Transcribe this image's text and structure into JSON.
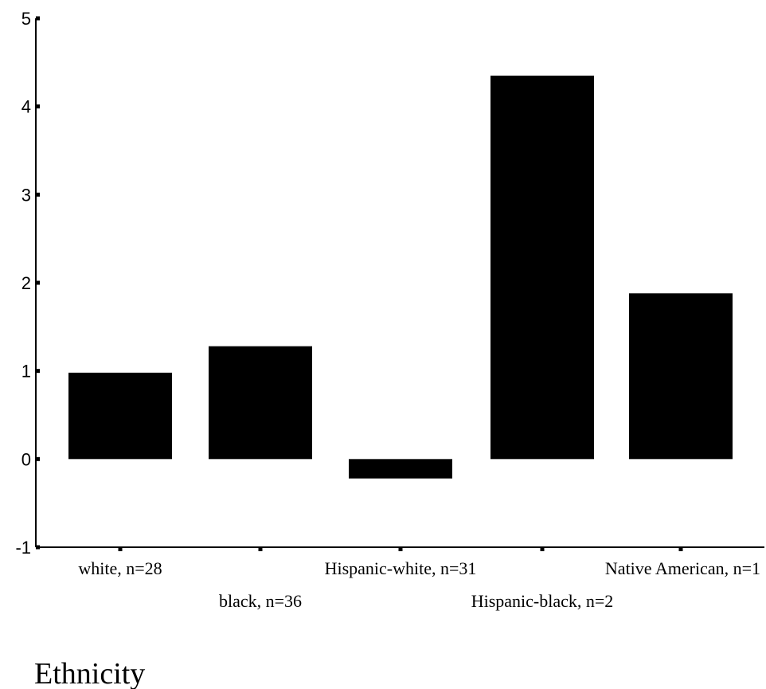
{
  "chart_data": {
    "type": "bar",
    "categories": [
      "white, n=28",
      "black, n=36",
      "Hispanic-white, n=31",
      "Hispanic-black, n=2",
      "Native American, n=1"
    ],
    "values": [
      0.98,
      1.28,
      -0.22,
      4.35,
      1.88
    ],
    "xlabel": "Ethnicity",
    "ylabel": "",
    "ylim": [
      -1,
      5
    ],
    "yticks": [
      "5",
      "4",
      "3",
      "2",
      "1",
      "0",
      "-1"
    ],
    "grid": false,
    "legend": "none",
    "bar_color": "#000000"
  }
}
